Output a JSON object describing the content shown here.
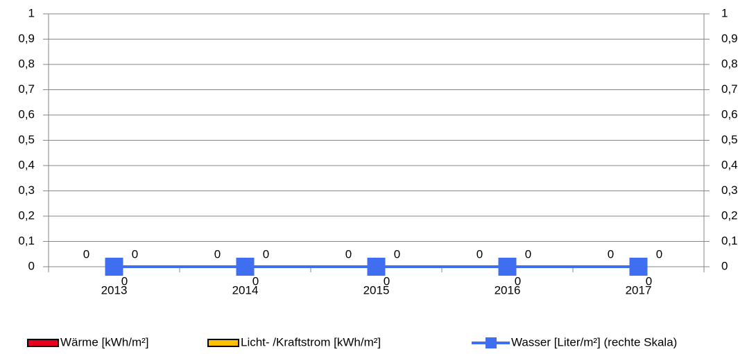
{
  "chart_data": {
    "type": "bar",
    "categories": [
      "2013",
      "2014",
      "2015",
      "2016",
      "2017"
    ],
    "series": [
      {
        "name": "Wärme [kWh/m²]",
        "color": "#e8001c",
        "values": [
          0,
          0,
          0,
          0,
          0
        ]
      },
      {
        "name": "Licht- /Kraftstrom [kWh/m²]",
        "color": "#ffc000",
        "values": [
          0,
          0,
          0,
          0,
          0
        ]
      },
      {
        "name": "Wasser [Liter/m²] (rechte Skala)",
        "color": "#3f6ff0",
        "type": "line",
        "axis": "y2",
        "values": [
          0,
          0,
          0,
          0,
          0
        ]
      }
    ],
    "ylim": [
      0,
      1
    ],
    "yticks": [
      0,
      {
        "value": 0.1,
        "label": "0,1"
      },
      {
        "value": 0.2,
        "label": "0,2"
      },
      {
        "value": 0.3,
        "label": "0,3"
      },
      {
        "value": 0.4,
        "label": "0,4"
      },
      {
        "value": 0.5,
        "label": "0,5"
      },
      {
        "value": 0.6,
        "label": "0,6"
      },
      {
        "value": 0.7,
        "label": "0,7"
      },
      {
        "value": 0.8,
        "label": "0,8"
      },
      {
        "value": 0.9,
        "label": "0,9"
      },
      1
    ],
    "y2lim": [
      0,
      1
    ],
    "y2ticks": [
      0,
      {
        "value": 0.1,
        "label": "0,1"
      },
      {
        "value": 0.2,
        "label": "0,2"
      },
      {
        "value": 0.3,
        "label": "0,3"
      },
      {
        "value": 0.4,
        "label": "0,4"
      },
      {
        "value": 0.5,
        "label": "0,5"
      },
      {
        "value": 0.6,
        "label": "0,6"
      },
      {
        "value": 0.7,
        "label": "0,7"
      },
      {
        "value": 0.8,
        "label": "0,8"
      },
      {
        "value": 0.9,
        "label": "0,9"
      },
      1
    ],
    "grid": true,
    "legend": "bottom"
  }
}
